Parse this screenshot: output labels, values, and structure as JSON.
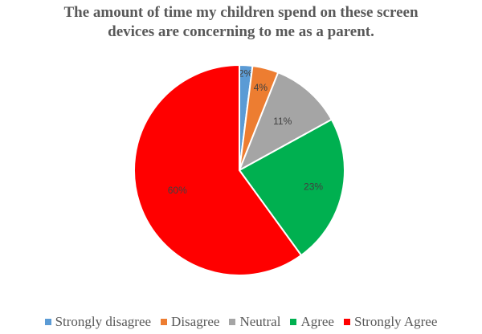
{
  "chart_data": {
    "type": "pie",
    "title": "The amount  of time my children  spend on these screen\ndevices are concerning  to me as a parent.",
    "categories": [
      "Strongly disagree",
      "Disagree",
      "Neutral",
      "Agree",
      "Strongly Agree"
    ],
    "values": [
      2,
      4,
      11,
      23,
      60
    ],
    "labels": [
      "2%",
      "4%",
      "11%",
      "23%",
      "60%"
    ],
    "colors": [
      "#5B9BD5",
      "#ED7D31",
      "#A5A5A5",
      "#00B050",
      "#FF0000"
    ],
    "legend": "bottom"
  }
}
